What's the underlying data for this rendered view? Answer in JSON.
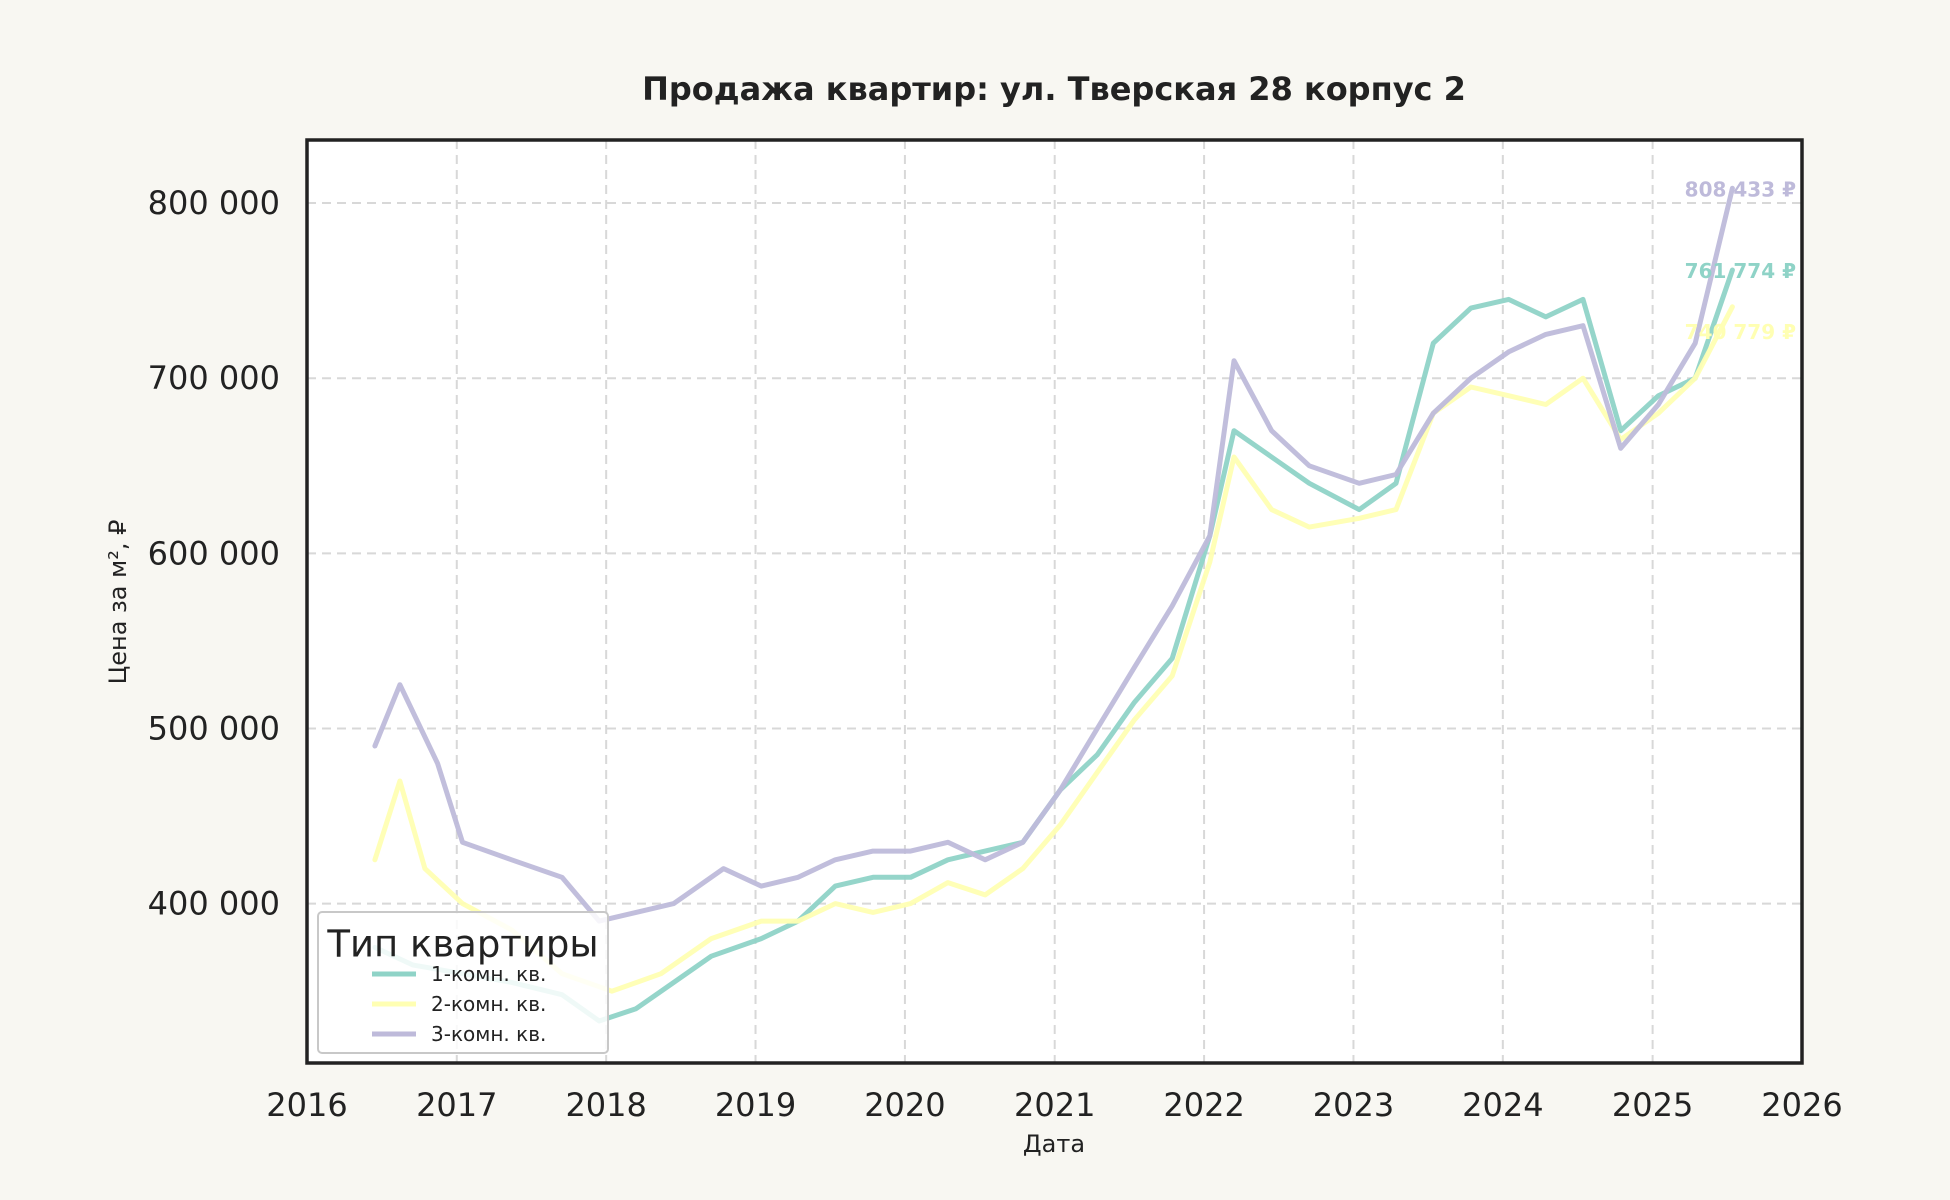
{
  "chart_data": {
    "type": "line",
    "title": "Продажа квартир: ул. Тверская 28 корпус 2",
    "xlabel": "Дата",
    "ylabel": "Цена за м², ₽",
    "xlim": [
      "2016-01-01",
      "2026-01-01"
    ],
    "ylim": [
      309000,
      836000
    ],
    "x_ticks": [
      "2016",
      "2017",
      "2018",
      "2019",
      "2020",
      "2021",
      "2022",
      "2023",
      "2024",
      "2025",
      "2026"
    ],
    "y_ticks": [
      {
        "value": 400000,
        "label": "400 000"
      },
      {
        "value": 500000,
        "label": "500 000"
      },
      {
        "value": 600000,
        "label": "600 000"
      },
      {
        "value": 700000,
        "label": "700 000"
      },
      {
        "value": 800000,
        "label": "800 000"
      }
    ],
    "grid": true,
    "legend": {
      "title": "Тип квартиры",
      "position": "lower-left"
    },
    "series": [
      {
        "name": "1-комн. кв.",
        "color": "#8fd3c7",
        "end_label": "761 774 ₽",
        "x": [
          "2016-06",
          "2016-09",
          "2017-01",
          "2017-05",
          "2017-09",
          "2017-12",
          "2018-03",
          "2018-06",
          "2018-09",
          "2019-01",
          "2019-04",
          "2019-07",
          "2019-10",
          "2020-01",
          "2020-04",
          "2020-07",
          "2020-10",
          "2021-01",
          "2021-04",
          "2021-07",
          "2021-10",
          "2022-01",
          "2022-03",
          "2022-06",
          "2022-09",
          "2023-01",
          "2023-04",
          "2023-07",
          "2023-10",
          "2024-01",
          "2024-04",
          "2024-07",
          "2024-10",
          "2025-01",
          "2025-04",
          "2025-07"
        ],
        "y": [
          375000,
          365000,
          360000,
          355000,
          348000,
          333000,
          340000,
          355000,
          370000,
          380000,
          390000,
          410000,
          415000,
          415000,
          425000,
          430000,
          435000,
          465000,
          485000,
          515000,
          540000,
          610000,
          670000,
          655000,
          640000,
          625000,
          640000,
          720000,
          740000,
          745000,
          735000,
          745000,
          670000,
          690000,
          700000,
          761774
        ]
      },
      {
        "name": "2-комн. кв.",
        "color": "#ffffb3",
        "end_label": "740 779 ₽",
        "x": [
          "2016-06",
          "2016-08",
          "2016-10",
          "2017-01",
          "2017-05",
          "2017-09",
          "2018-01",
          "2018-05",
          "2018-09",
          "2019-01",
          "2019-04",
          "2019-07",
          "2019-10",
          "2020-01",
          "2020-04",
          "2020-07",
          "2020-10",
          "2021-01",
          "2021-04",
          "2021-07",
          "2021-10",
          "2022-01",
          "2022-03",
          "2022-06",
          "2022-09",
          "2023-01",
          "2023-04",
          "2023-07",
          "2023-10",
          "2024-01",
          "2024-04",
          "2024-07",
          "2024-10",
          "2025-01",
          "2025-04",
          "2025-07"
        ],
        "y": [
          425000,
          470000,
          420000,
          400000,
          385000,
          360000,
          350000,
          360000,
          380000,
          390000,
          390000,
          400000,
          395000,
          400000,
          412000,
          405000,
          420000,
          445000,
          475000,
          505000,
          530000,
          595000,
          655000,
          625000,
          615000,
          620000,
          625000,
          680000,
          695000,
          690000,
          685000,
          700000,
          665000,
          680000,
          700000,
          740779
        ]
      },
      {
        "name": "3-комн. кв.",
        "color": "#bebada",
        "end_label": "808 433 ₽",
        "x": [
          "2016-06",
          "2016-08",
          "2016-11",
          "2017-01",
          "2017-05",
          "2017-09",
          "2017-12",
          "2018-03",
          "2018-06",
          "2018-10",
          "2019-01",
          "2019-04",
          "2019-07",
          "2019-10",
          "2020-01",
          "2020-04",
          "2020-07",
          "2020-10",
          "2021-01",
          "2021-04",
          "2021-07",
          "2021-10",
          "2022-01",
          "2022-03",
          "2022-06",
          "2022-09",
          "2023-01",
          "2023-04",
          "2023-07",
          "2023-10",
          "2024-01",
          "2024-04",
          "2024-07",
          "2024-10",
          "2025-01",
          "2025-04",
          "2025-07"
        ],
        "y": [
          490000,
          525000,
          480000,
          435000,
          425000,
          415000,
          390000,
          395000,
          400000,
          420000,
          410000,
          415000,
          425000,
          430000,
          430000,
          435000,
          425000,
          435000,
          465000,
          500000,
          535000,
          570000,
          610000,
          710000,
          670000,
          650000,
          640000,
          645000,
          680000,
          700000,
          715000,
          725000,
          730000,
          660000,
          685000,
          720000,
          808433
        ]
      }
    ]
  }
}
